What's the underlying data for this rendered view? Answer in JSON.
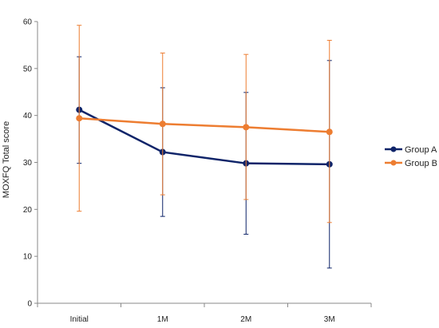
{
  "chart_data": {
    "type": "line",
    "title": "",
    "xlabel": "",
    "ylabel": "MOXFQ Total score",
    "categories": [
      "Initial",
      "1M",
      "2M",
      "3M"
    ],
    "ylim": [
      0,
      60
    ],
    "yticks": [
      0,
      10,
      20,
      30,
      40,
      50,
      60
    ],
    "grid": false,
    "legend_position": "right",
    "series": [
      {
        "name": "Group A",
        "color": "#0f2469",
        "values": [
          41.2,
          32.2,
          29.8,
          29.6
        ],
        "error_low": [
          29.8,
          18.5,
          14.7,
          7.5
        ],
        "error_high": [
          52.5,
          45.9,
          44.9,
          51.7
        ]
      },
      {
        "name": "Group B",
        "color": "#ed7d31",
        "values": [
          39.4,
          38.2,
          37.5,
          36.5
        ],
        "error_low": [
          19.6,
          23.1,
          22.1,
          17.2
        ],
        "error_high": [
          59.2,
          53.3,
          53.0,
          56.0
        ]
      }
    ]
  }
}
